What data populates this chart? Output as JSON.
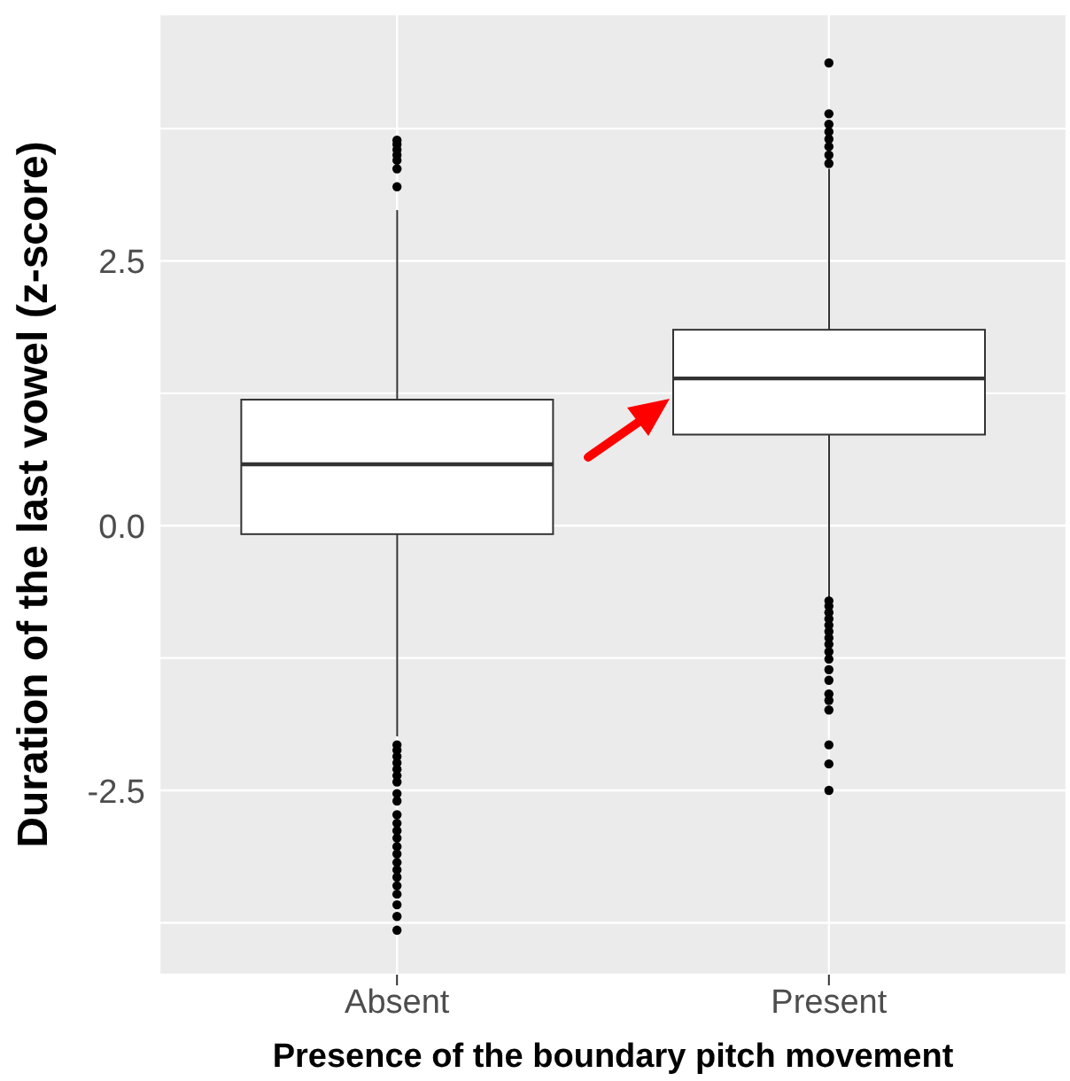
{
  "chart_data": {
    "type": "box",
    "xlabel": "Presence of the boundary pitch movement",
    "ylabel": "Duration of the last vowel (z-score)",
    "categories": [
      "Absent",
      "Present"
    ],
    "boxes": [
      {
        "low": -1.99,
        "q1": -0.08,
        "median": 0.58,
        "q3": 1.19,
        "high": 2.98,
        "outliers": [
          3.64,
          3.6,
          3.55,
          3.5,
          3.45,
          3.37,
          3.2,
          -2.07,
          -2.12,
          -2.18,
          -2.24,
          -2.3,
          -2.36,
          -2.42,
          -2.53,
          -2.6,
          -2.73,
          -2.81,
          -2.88,
          -2.95,
          -3.03,
          -3.1,
          -3.18,
          -3.25,
          -3.32,
          -3.4,
          -3.48,
          -3.58,
          -3.69,
          -3.82
        ]
      },
      {
        "low": -0.68,
        "q1": 0.86,
        "median": 1.39,
        "q3": 1.85,
        "high": 3.37,
        "outliers": [
          4.37,
          3.89,
          3.79,
          3.72,
          3.65,
          3.58,
          3.5,
          3.42,
          -0.71,
          -0.76,
          -0.82,
          -0.88,
          -0.94,
          -1.0,
          -1.06,
          -1.12,
          -1.19,
          -1.26,
          -1.36,
          -1.46,
          -1.59,
          -1.65,
          -1.74,
          -2.07,
          -2.25,
          -2.5
        ]
      }
    ],
    "ylim": [
      -4.24,
      4.83
    ],
    "yticks": [
      {
        "value": -3.75,
        "label": null
      },
      -2.5,
      {
        "value": -1.25,
        "label": null
      },
      {
        "value": 0,
        "label": "0.0"
      },
      {
        "value": 1.25,
        "label": null
      },
      2.5,
      {
        "value": 3.75,
        "label": null
      }
    ],
    "grid": true
  }
}
